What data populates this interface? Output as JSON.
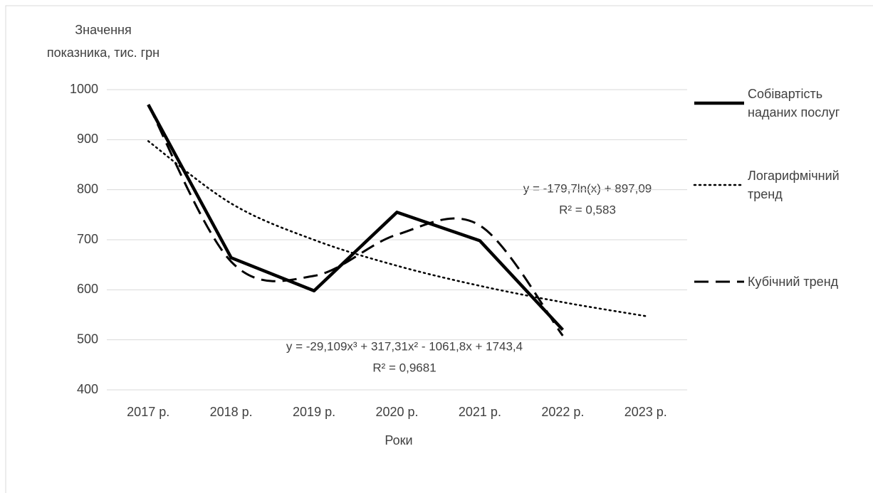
{
  "chart_data": {
    "type": "line",
    "y_label": [
      "Значення",
      "показника, тис. грн"
    ],
    "x_label": "Роки",
    "categories": [
      "2017 р.",
      "2018 р.",
      "2019 р.",
      "2020 р.",
      "2021 р.",
      "2022 р.",
      "2023 р."
    ],
    "series": [
      {
        "name": "Собівартість наданих послуг",
        "color": "#000000",
        "style": "solid",
        "values": [
          970,
          664,
          598,
          755,
          698,
          520,
          null
        ]
      },
      {
        "name": "Логарифмічний тренд",
        "color": "#000000",
        "style": "dotted",
        "smooth": true,
        "values": [
          897.1,
          772.5,
          699.7,
          648.0,
          607.9,
          575.1,
          547.4
        ]
      },
      {
        "name": "Кубічний тренд",
        "color": "#000000",
        "style": "dashed",
        "smooth": true,
        "values": [
          969.8,
          656.2,
          627.8,
          710.2,
          728.5,
          508.2,
          null
        ]
      }
    ],
    "annotations": [
      {
        "equation": "y = -179,7ln(x) + 897,09",
        "r2": "R² = 0,583"
      },
      {
        "equation": "y = -29,109x³ + 317,31x² - 1061,8x + 1743,4",
        "r2": "R² = 0,9681"
      }
    ],
    "ylim": [
      400,
      1000
    ],
    "yticks": [
      400,
      500,
      600,
      700,
      800,
      900,
      1000
    ],
    "grid": true,
    "legend": "right"
  }
}
